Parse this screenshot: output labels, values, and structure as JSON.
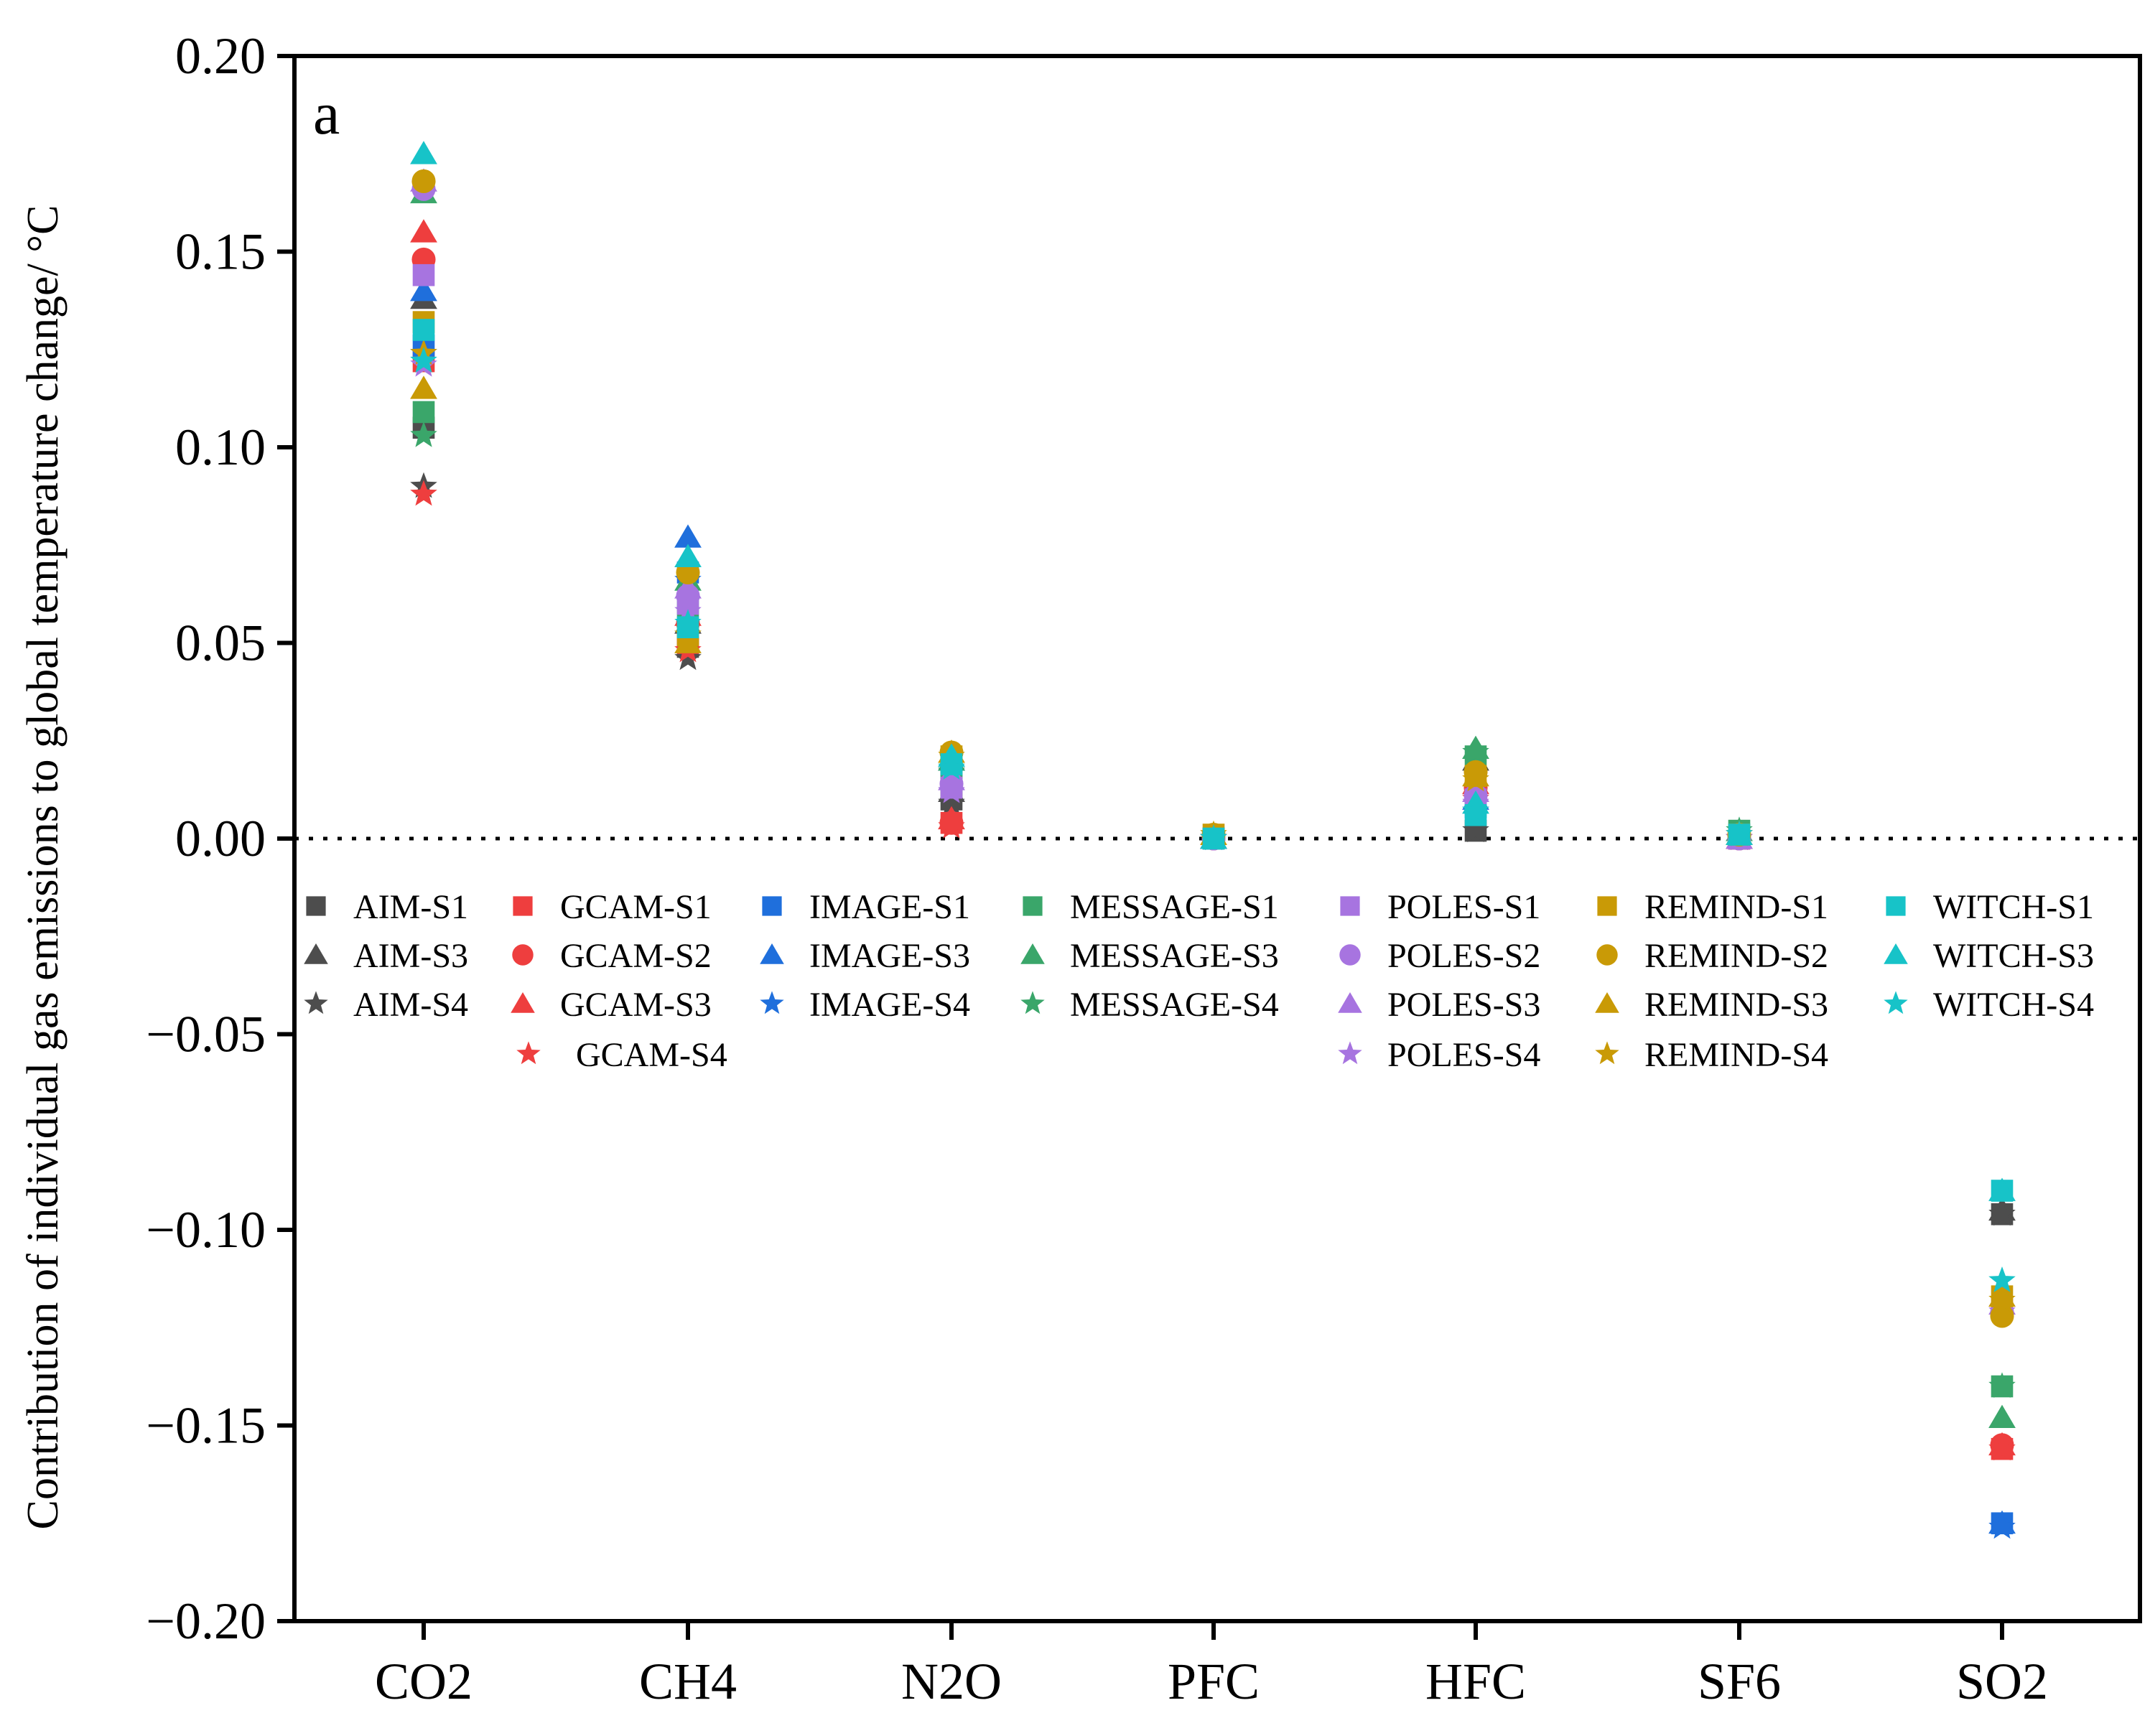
{
  "chart_data": {
    "type": "scatter",
    "panel_label": "a",
    "ylabel": "Contribution of individual gas emissions to global temperature change/ °C",
    "xlabel": "",
    "ylim": [
      -0.2,
      0.2
    ],
    "yticks": [
      0.2,
      0.15,
      0.1,
      0.05,
      0.0,
      -0.05,
      -0.1,
      -0.15,
      -0.2
    ],
    "ytick_labels": [
      "0.20",
      "0.15",
      "0.10",
      "0.05",
      "0.00",
      "−0.05",
      "−0.10",
      "−0.15",
      "−0.20"
    ],
    "categories": [
      "CO2",
      "CH4",
      "N2O",
      "PFC",
      "HFC",
      "SF6",
      "SO2"
    ],
    "zero_line": "dotted",
    "legend_columns": [
      [
        "AIM-S1",
        "AIM-S3",
        "AIM-S4"
      ],
      [
        "GCAM-S1",
        "GCAM-S2",
        "GCAM-S3",
        "GCAM-S4"
      ],
      [
        "IMAGE-S1",
        "IMAGE-S3",
        "IMAGE-S4"
      ],
      [
        "MESSAGE-S1",
        "MESSAGE-S3",
        "MESSAGE-S4"
      ],
      [
        "POLES-S1",
        "POLES-S2",
        "POLES-S3",
        "POLES-S4"
      ],
      [
        "REMIND-S1",
        "REMIND-S2",
        "REMIND-S3",
        "REMIND-S4"
      ],
      [
        "WITCH-S1",
        "WITCH-S3",
        "WITCH-S4"
      ]
    ],
    "series": [
      {
        "name": "AIM-S1",
        "marker": "square",
        "color": "#4d4d4d",
        "values": [
          0.105,
          0.049,
          0.01,
          0.0,
          0.002,
          0.0,
          -0.096
        ]
      },
      {
        "name": "AIM-S3",
        "marker": "triangle",
        "color": "#4d4d4d",
        "values": [
          0.138,
          0.055,
          0.012,
          0.0,
          0.02,
          0.001,
          -0.095
        ]
      },
      {
        "name": "AIM-S4",
        "marker": "star",
        "color": "#4d4d4d",
        "values": [
          0.09,
          0.046,
          0.009,
          0.0,
          0.002,
          0.0,
          -0.096
        ]
      },
      {
        "name": "GCAM-S1",
        "marker": "square",
        "color": "#ee3e3e",
        "values": [
          0.122,
          0.05,
          0.004,
          0.0,
          0.012,
          0.0,
          -0.156
        ]
      },
      {
        "name": "GCAM-S2",
        "marker": "circle",
        "color": "#ee3e3e",
        "values": [
          0.148,
          0.055,
          0.004,
          0.0,
          0.013,
          0.0,
          -0.155
        ]
      },
      {
        "name": "GCAM-S3",
        "marker": "triangle",
        "color": "#ee3e3e",
        "values": [
          0.155,
          0.057,
          0.005,
          0.0,
          0.014,
          0.0,
          -0.155
        ]
      },
      {
        "name": "GCAM-S4",
        "marker": "star",
        "color": "#ee3e3e",
        "values": [
          0.088,
          0.048,
          0.003,
          0.0,
          0.01,
          0.0,
          -0.156
        ]
      },
      {
        "name": "IMAGE-S1",
        "marker": "square",
        "color": "#1f6fdc",
        "values": [
          0.126,
          0.068,
          0.018,
          0.0,
          0.008,
          0.001,
          -0.175
        ]
      },
      {
        "name": "IMAGE-S3",
        "marker": "triangle",
        "color": "#1f6fdc",
        "values": [
          0.14,
          0.077,
          0.02,
          0.0,
          0.01,
          0.001,
          -0.175
        ]
      },
      {
        "name": "IMAGE-S4",
        "marker": "star",
        "color": "#1f6fdc",
        "values": [
          0.124,
          0.066,
          0.017,
          0.0,
          0.007,
          0.001,
          -0.176
        ]
      },
      {
        "name": "MESSAGE-S1",
        "marker": "square",
        "color": "#3aa66a",
        "values": [
          0.109,
          0.058,
          0.018,
          0.0,
          0.021,
          0.002,
          -0.14
        ]
      },
      {
        "name": "MESSAGE-S3",
        "marker": "triangle",
        "color": "#3aa66a",
        "values": [
          0.165,
          0.066,
          0.02,
          0.0,
          0.023,
          0.002,
          -0.148
        ]
      },
      {
        "name": "MESSAGE-S4",
        "marker": "star",
        "color": "#3aa66a",
        "values": [
          0.103,
          0.052,
          0.017,
          0.0,
          0.022,
          0.002,
          -0.14
        ]
      },
      {
        "name": "POLES-S1",
        "marker": "square",
        "color": "#a774e0",
        "values": [
          0.144,
          0.06,
          0.013,
          0.0,
          0.01,
          0.0,
          -0.12
        ]
      },
      {
        "name": "POLES-S2",
        "marker": "circle",
        "color": "#a774e0",
        "values": [
          0.166,
          0.062,
          0.014,
          0.0,
          0.011,
          0.0,
          -0.121
        ]
      },
      {
        "name": "POLES-S3",
        "marker": "triangle",
        "color": "#a774e0",
        "values": [
          0.168,
          0.064,
          0.015,
          0.0,
          0.012,
          0.0,
          -0.119
        ]
      },
      {
        "name": "POLES-S4",
        "marker": "star",
        "color": "#a774e0",
        "values": [
          0.121,
          0.058,
          0.012,
          0.0,
          0.009,
          0.0,
          -0.121
        ]
      },
      {
        "name": "REMIND-S1",
        "marker": "square",
        "color": "#c99a06",
        "values": [
          0.132,
          0.052,
          0.021,
          0.001,
          0.016,
          0.001,
          -0.117
        ]
      },
      {
        "name": "REMIND-S2",
        "marker": "circle",
        "color": "#c99a06",
        "values": [
          0.168,
          0.068,
          0.022,
          0.001,
          0.017,
          0.001,
          -0.122
        ]
      },
      {
        "name": "REMIND-S3",
        "marker": "triangle",
        "color": "#c99a06",
        "values": [
          0.115,
          0.05,
          0.022,
          0.001,
          0.016,
          0.001,
          -0.117
        ]
      },
      {
        "name": "REMIND-S4",
        "marker": "star",
        "color": "#c99a06",
        "values": [
          0.124,
          0.052,
          0.021,
          0.001,
          0.015,
          0.001,
          -0.118
        ]
      },
      {
        "name": "WITCH-S1",
        "marker": "square",
        "color": "#17c3c8",
        "values": [
          0.13,
          0.054,
          0.019,
          0.0,
          0.006,
          0.001,
          -0.09
        ]
      },
      {
        "name": "WITCH-S3",
        "marker": "triangle",
        "color": "#17c3c8",
        "values": [
          0.175,
          0.072,
          0.021,
          0.0,
          0.009,
          0.001,
          -0.09
        ]
      },
      {
        "name": "WITCH-S4",
        "marker": "star",
        "color": "#17c3c8",
        "values": [
          0.122,
          0.055,
          0.018,
          0.0,
          0.007,
          0.001,
          -0.113
        ]
      }
    ]
  }
}
